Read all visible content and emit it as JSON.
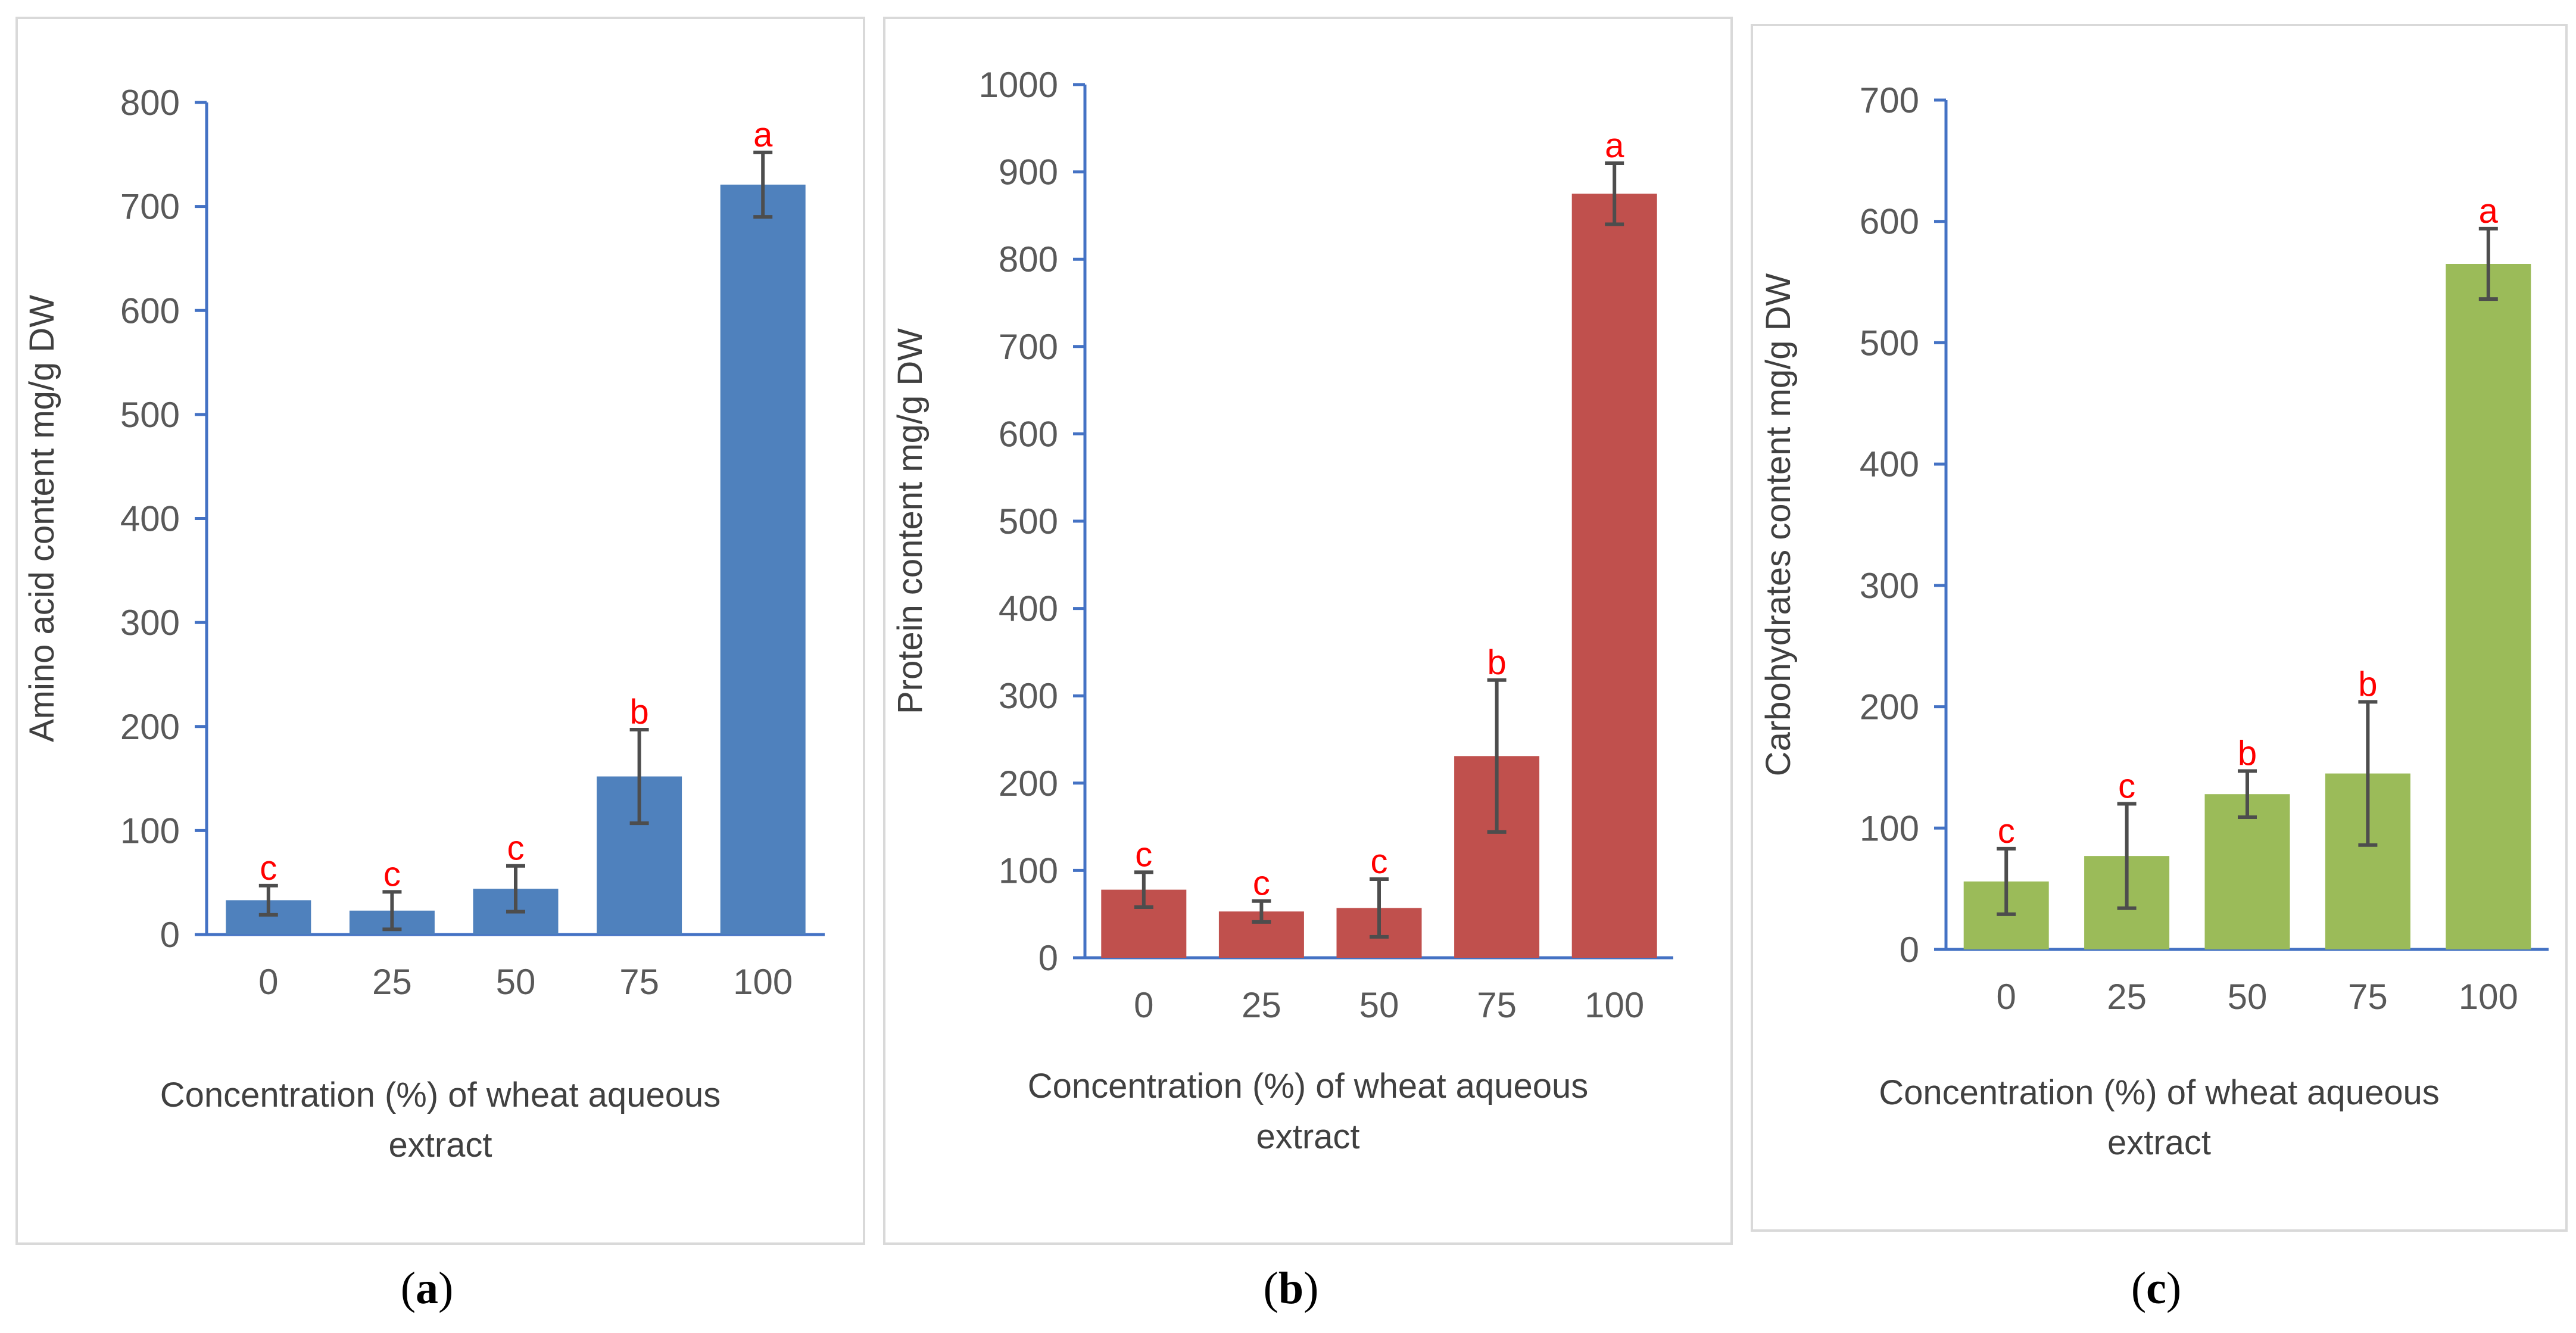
{
  "chart_data": [
    {
      "type": "bar",
      "panel_label": "a",
      "title": "",
      "xlabel_lines": [
        "Concentration (%) of wheat aqueous",
        "extract"
      ],
      "ylabel": "Amino acid content mg/g DW",
      "categories": [
        "0",
        "25",
        "50",
        "75",
        "100"
      ],
      "values": [
        33,
        23,
        44,
        152,
        721
      ],
      "errors": [
        14,
        18,
        22,
        45,
        31
      ],
      "letters": [
        "c",
        "c",
        "c",
        "b",
        "a"
      ],
      "ylim": [
        0,
        800
      ],
      "yticks": [
        0,
        100,
        200,
        300,
        400,
        500,
        600,
        700,
        800
      ],
      "color": "#4f81bd",
      "grid": false,
      "legend": "none"
    },
    {
      "type": "bar",
      "panel_label": "b",
      "title": "",
      "xlabel_lines": [
        "Concentration (%) of wheat aqueous",
        "extract"
      ],
      "ylabel": "Protein content mg/g DW",
      "categories": [
        "0",
        "25",
        "50",
        "75",
        "100"
      ],
      "values": [
        78,
        53,
        57,
        231,
        875
      ],
      "errors": [
        20,
        12,
        33,
        87,
        35
      ],
      "letters": [
        "c",
        "c",
        "c",
        "b",
        "a"
      ],
      "ylim": [
        0,
        1000
      ],
      "yticks": [
        0,
        100,
        200,
        300,
        400,
        500,
        600,
        700,
        800,
        900,
        1000
      ],
      "color": "#c0504d",
      "grid": false,
      "legend": "none"
    },
    {
      "type": "bar",
      "panel_label": "c",
      "title": "",
      "xlabel_lines": [
        "Concentration (%) of wheat aqueous",
        "extract"
      ],
      "ylabel": "Carbohydrates content mg/g DW",
      "categories": [
        "0",
        "25",
        "50",
        "75",
        "100"
      ],
      "values": [
        56,
        77,
        128,
        145,
        565
      ],
      "errors": [
        27,
        43,
        19,
        59,
        29
      ],
      "letters": [
        "c",
        "c",
        "b",
        "b",
        "a"
      ],
      "ylim": [
        0,
        700
      ],
      "yticks": [
        0,
        100,
        200,
        300,
        400,
        500,
        600,
        700
      ],
      "color": "#9bbb59",
      "grid": false,
      "legend": "none"
    }
  ]
}
